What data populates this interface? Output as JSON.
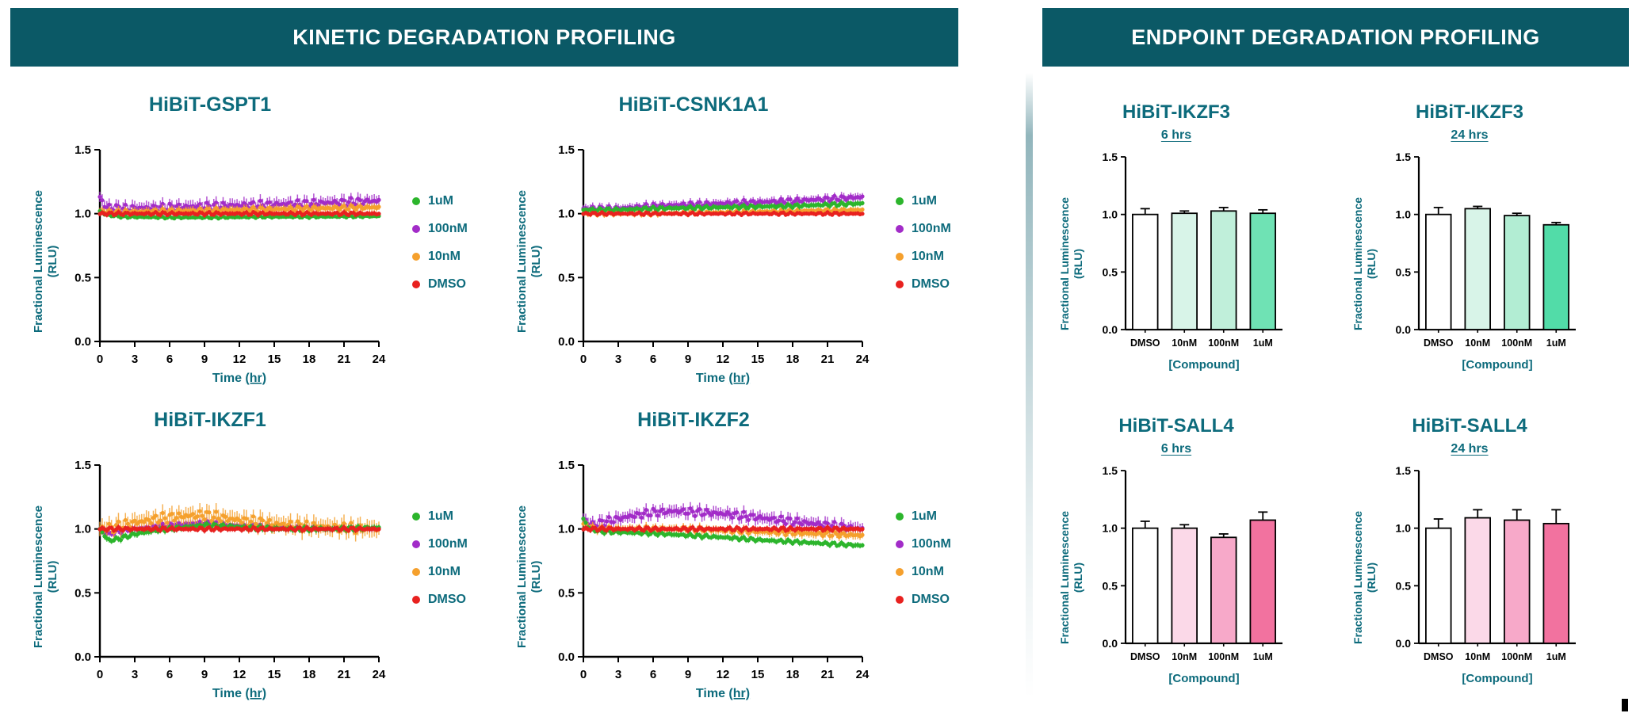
{
  "headers": {
    "kinetic": "KINETIC DEGRADATION PROFILING",
    "endpoint": "ENDPOINT DEGRADATION PROFILING"
  },
  "colors": {
    "header_bg": "#0b5966",
    "teal_text": "#0d6b7c",
    "series_green": "#2cb52c",
    "series_purple": "#a22cc8",
    "series_orange": "#f5a02d",
    "series_red": "#e8211f"
  },
  "chart_data": {
    "gspt1": {
      "type": "scatter",
      "title": "HiBiT-GSPT1",
      "ylabel1": "Fractional Luminescence",
      "ylabel2": "(RLU)",
      "xlabel_prefix": "Time ",
      "xlabel_unit": "(hr)",
      "xlim": [
        0,
        24
      ],
      "ylim": [
        0,
        1.5
      ],
      "xticks": [
        0,
        3,
        6,
        9,
        12,
        15,
        18,
        21,
        24
      ],
      "yticks": [
        "0.0",
        "0.5",
        "1.0",
        "1.5"
      ],
      "series": [
        {
          "name": "1uM",
          "color": "#2cb52c",
          "err": 0.012,
          "points": [
            [
              0,
              1.02
            ],
            [
              0.5,
              0.99
            ],
            [
              2,
              0.975
            ],
            [
              6,
              0.97
            ],
            [
              10,
              0.97
            ],
            [
              14,
              0.975
            ],
            [
              18,
              0.975
            ],
            [
              24,
              0.98
            ]
          ]
        },
        {
          "name": "100nM",
          "color": "#a22cc8",
          "err": 0.045,
          "points": [
            [
              0,
              1.13
            ],
            [
              0.5,
              1.05
            ],
            [
              2,
              1.04
            ],
            [
              6,
              1.05
            ],
            [
              10,
              1.06
            ],
            [
              14,
              1.07
            ],
            [
              18,
              1.08
            ],
            [
              24,
              1.1
            ]
          ]
        },
        {
          "name": "10nM",
          "color": "#f5a02d",
          "err": 0.028,
          "points": [
            [
              0,
              1.02
            ],
            [
              1,
              1.01
            ],
            [
              6,
              1.02
            ],
            [
              12,
              1.03
            ],
            [
              18,
              1.04
            ],
            [
              24,
              1.05
            ]
          ]
        },
        {
          "name": "DMSO",
          "color": "#e8211f",
          "err": 0.018,
          "points": [
            [
              0,
              1.0
            ],
            [
              6,
              1.0
            ],
            [
              12,
              1.0
            ],
            [
              18,
              1.0
            ],
            [
              24,
              1.0
            ]
          ]
        }
      ]
    },
    "csnk1a1": {
      "type": "scatter",
      "title": "HiBiT-CSNK1A1",
      "ylabel1": "Fractional Luminescence",
      "ylabel2": "(RLU)",
      "xlabel_prefix": "Time ",
      "xlabel_unit": "(hr)",
      "xlim": [
        0,
        24
      ],
      "ylim": [
        0,
        1.5
      ],
      "xticks": [
        0,
        3,
        6,
        9,
        12,
        15,
        18,
        21,
        24
      ],
      "yticks": [
        "0.0",
        "0.5",
        "1.0",
        "1.5"
      ],
      "series": [
        {
          "name": "1uM",
          "color": "#2cb52c",
          "err": 0.02,
          "points": [
            [
              0,
              1.03
            ],
            [
              3,
              1.03
            ],
            [
              6,
              1.04
            ],
            [
              12,
              1.05
            ],
            [
              18,
              1.06
            ],
            [
              24,
              1.08
            ]
          ]
        },
        {
          "name": "100nM",
          "color": "#a22cc8",
          "err": 0.03,
          "points": [
            [
              0,
              1.04
            ],
            [
              3,
              1.04
            ],
            [
              6,
              1.06
            ],
            [
              12,
              1.08
            ],
            [
              18,
              1.1
            ],
            [
              24,
              1.13
            ]
          ]
        },
        {
          "name": "10nM",
          "color": "#f5a02d",
          "err": 0.02,
          "points": [
            [
              0,
              1.0
            ],
            [
              6,
              1.0
            ],
            [
              12,
              1.01
            ],
            [
              18,
              1.02
            ],
            [
              24,
              1.03
            ]
          ]
        },
        {
          "name": "DMSO",
          "color": "#e8211f",
          "err": 0.015,
          "points": [
            [
              0,
              1.0
            ],
            [
              12,
              1.0
            ],
            [
              24,
              1.0
            ]
          ]
        }
      ]
    },
    "ikzf1": {
      "type": "scatter",
      "title": "HiBiT-IKZF1",
      "ylabel1": "Fractional Luminescence",
      "ylabel2": "(RLU)",
      "xlabel_prefix": "Time ",
      "xlabel_unit": "(hr)",
      "xlim": [
        0,
        24
      ],
      "ylim": [
        0,
        1.5
      ],
      "xticks": [
        0,
        3,
        6,
        9,
        12,
        15,
        18,
        21,
        24
      ],
      "yticks": [
        "0.0",
        "0.5",
        "1.0",
        "1.5"
      ],
      "series": [
        {
          "name": "1uM",
          "color": "#2cb52c",
          "err": 0.022,
          "points": [
            [
              0,
              1.0
            ],
            [
              0.7,
              0.91
            ],
            [
              1.5,
              0.92
            ],
            [
              3,
              0.96
            ],
            [
              5,
              0.99
            ],
            [
              7,
              1.01
            ],
            [
              9,
              1.03
            ],
            [
              11,
              1.02
            ],
            [
              13,
              1.01
            ],
            [
              16,
              1.0
            ],
            [
              20,
              1.0
            ],
            [
              24,
              1.01
            ]
          ]
        },
        {
          "name": "100nM",
          "color": "#a22cc8",
          "err": 0.025,
          "points": [
            [
              0,
              1.0
            ],
            [
              0.7,
              0.96
            ],
            [
              2,
              0.99
            ],
            [
              4,
              1.01
            ],
            [
              6,
              1.03
            ],
            [
              9,
              1.05
            ],
            [
              11,
              1.03
            ],
            [
              13,
              1.02
            ],
            [
              16,
              1.01
            ],
            [
              20,
              1.0
            ],
            [
              24,
              1.0
            ]
          ]
        },
        {
          "name": "10nM",
          "color": "#f5a02d",
          "err": 0.06,
          "points": [
            [
              0,
              1.0
            ],
            [
              1,
              1.01
            ],
            [
              3,
              1.05
            ],
            [
              5,
              1.08
            ],
            [
              7,
              1.1
            ],
            [
              9,
              1.11
            ],
            [
              11,
              1.08
            ],
            [
              13,
              1.06
            ],
            [
              15,
              1.04
            ],
            [
              18,
              1.02
            ],
            [
              21,
              1.01
            ],
            [
              24,
              1.0
            ]
          ]
        },
        {
          "name": "DMSO",
          "color": "#e8211f",
          "err": 0.02,
          "points": [
            [
              0,
              1.0
            ],
            [
              12,
              1.0
            ],
            [
              24,
              1.0
            ]
          ]
        }
      ]
    },
    "ikzf2": {
      "type": "scatter",
      "title": "HiBiT-IKZF2",
      "ylabel1": "Fractional Luminescence",
      "ylabel2": "(RLU)",
      "xlabel_prefix": "Time ",
      "xlabel_unit": "(hr)",
      "xlim": [
        0,
        24
      ],
      "ylim": [
        0,
        1.5
      ],
      "xticks": [
        0,
        3,
        6,
        9,
        12,
        15,
        18,
        21,
        24
      ],
      "yticks": [
        "0.0",
        "0.5",
        "1.0",
        "1.5"
      ],
      "series": [
        {
          "name": "1uM",
          "color": "#2cb52c",
          "err": 0.02,
          "points": [
            [
              0,
              1.08
            ],
            [
              0.5,
              1.0
            ],
            [
              1.5,
              0.98
            ],
            [
              3,
              0.975
            ],
            [
              6,
              0.965
            ],
            [
              9,
              0.95
            ],
            [
              12,
              0.935
            ],
            [
              15,
              0.915
            ],
            [
              18,
              0.9
            ],
            [
              21,
              0.885
            ],
            [
              24,
              0.87
            ]
          ]
        },
        {
          "name": "100nM",
          "color": "#a22cc8",
          "err": 0.045,
          "points": [
            [
              0,
              1.08
            ],
            [
              0.7,
              1.03
            ],
            [
              2,
              1.06
            ],
            [
              4,
              1.1
            ],
            [
              6,
              1.13
            ],
            [
              8,
              1.14
            ],
            [
              10,
              1.13
            ],
            [
              12,
              1.12
            ],
            [
              14,
              1.1
            ],
            [
              16,
              1.08
            ],
            [
              18,
              1.06
            ],
            [
              20,
              1.04
            ],
            [
              22,
              1.02
            ],
            [
              24,
              1.0
            ]
          ]
        },
        {
          "name": "10nM",
          "color": "#f5a02d",
          "err": 0.03,
          "points": [
            [
              0,
              1.04
            ],
            [
              1,
              1.0
            ],
            [
              3,
              1.0
            ],
            [
              6,
              1.0
            ],
            [
              9,
              1.0
            ],
            [
              12,
              0.99
            ],
            [
              15,
              0.98
            ],
            [
              18,
              0.97
            ],
            [
              21,
              0.96
            ],
            [
              24,
              0.95
            ]
          ]
        },
        {
          "name": "DMSO",
          "color": "#e8211f",
          "err": 0.02,
          "points": [
            [
              0,
              1.0
            ],
            [
              12,
              1.0
            ],
            [
              24,
              1.0
            ]
          ]
        }
      ]
    },
    "ikzf3_6h": {
      "type": "bar",
      "title": "HiBiT-IKZF3",
      "subtitle": "6 hrs",
      "ylabel1": "Fractional Luminescence",
      "ylabel2": "(RLU)",
      "xlabel": "[Compound]",
      "ylim": [
        0,
        1.5
      ],
      "yticks": [
        "0.0",
        "0.5",
        "1.0",
        "1.5"
      ],
      "categories": [
        "DMSO",
        "10nM",
        "100nM",
        "1uM"
      ],
      "values": [
        1.0,
        1.01,
        1.03,
        1.01
      ],
      "errors": [
        0.05,
        0.02,
        0.03,
        0.03
      ],
      "bar_colors": [
        "#ffffff",
        "#d8f4e8",
        "#c0efda",
        "#6fe2b4"
      ]
    },
    "ikzf3_24h": {
      "type": "bar",
      "title": "HiBiT-IKZF3",
      "subtitle": "24 hrs",
      "ylabel1": "Fractional Luminescence",
      "ylabel2": "(RLU)",
      "xlabel": "[Compound]",
      "ylim": [
        0,
        1.5
      ],
      "yticks": [
        "0.0",
        "0.5",
        "1.0",
        "1.5"
      ],
      "categories": [
        "DMSO",
        "10nM",
        "100nM",
        "1uM"
      ],
      "values": [
        1.0,
        1.05,
        0.99,
        0.91
      ],
      "errors": [
        0.06,
        0.02,
        0.02,
        0.02
      ],
      "bar_colors": [
        "#ffffff",
        "#d8f4e8",
        "#b2edd3",
        "#52dca8"
      ]
    },
    "sall4_6h": {
      "type": "bar",
      "title": "HiBiT-SALL4",
      "subtitle": "6 hrs",
      "ylabel1": "Fractional Luminescence",
      "ylabel2": "(RLU)",
      "xlabel": "[Compound]",
      "ylim": [
        0,
        1.5
      ],
      "yticks": [
        "0.0",
        "0.5",
        "1.0",
        "1.5"
      ],
      "categories": [
        "DMSO",
        "10nM",
        "100nM",
        "1uM"
      ],
      "values": [
        1.0,
        1.0,
        0.92,
        1.07
      ],
      "errors": [
        0.06,
        0.03,
        0.03,
        0.07
      ],
      "bar_colors": [
        "#ffffff",
        "#fbd9e8",
        "#f7a9c9",
        "#f2729f"
      ]
    },
    "sall4_24h": {
      "type": "bar",
      "title": "HiBiT-SALL4",
      "subtitle": "24 hrs",
      "ylabel1": "Fractional Luminescence",
      "ylabel2": "(RLU)",
      "xlabel": "[Compound]",
      "ylim": [
        0,
        1.5
      ],
      "yticks": [
        "0.0",
        "0.5",
        "1.0",
        "1.5"
      ],
      "categories": [
        "DMSO",
        "10nM",
        "100nM",
        "1uM"
      ],
      "values": [
        1.0,
        1.09,
        1.07,
        1.04
      ],
      "errors": [
        0.08,
        0.07,
        0.09,
        0.12
      ],
      "bar_colors": [
        "#ffffff",
        "#fbd9e8",
        "#f7a9c9",
        "#f2729f"
      ]
    }
  }
}
